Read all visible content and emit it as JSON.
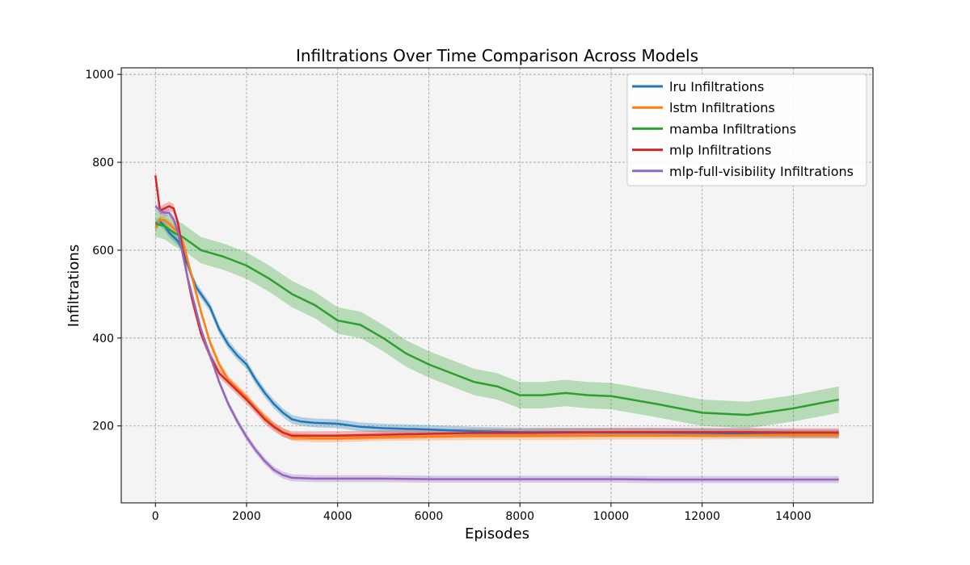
{
  "chart_data": {
    "type": "line",
    "title": "Infiltrations Over Time Comparison Across Models",
    "xlabel": "Episodes",
    "ylabel": "Infiltrations",
    "xlim": [
      -750,
      15750
    ],
    "ylim": [
      25,
      1015
    ],
    "xticks": [
      0,
      2000,
      4000,
      6000,
      8000,
      10000,
      12000,
      14000
    ],
    "yticks": [
      200,
      400,
      600,
      800,
      1000
    ],
    "grid": true,
    "legend_position": "top-right",
    "shaded_band": "variability band around each series mean",
    "series": [
      {
        "name": "lru Infiltrations",
        "color": "#1f77b4",
        "x": [
          0,
          100,
          200,
          300,
          400,
          500,
          600,
          700,
          800,
          900,
          1000,
          1200,
          1400,
          1600,
          1800,
          2000,
          2200,
          2400,
          2600,
          2800,
          3000,
          3200,
          3500,
          4000,
          4500,
          5000,
          6000,
          7000,
          8000,
          9000,
          10000,
          11000,
          12000,
          13000,
          14000,
          15000
        ],
        "y": [
          660,
          665,
          655,
          640,
          630,
          620,
          600,
          570,
          540,
          515,
          500,
          470,
          420,
          385,
          360,
          340,
          305,
          275,
          250,
          230,
          215,
          210,
          207,
          205,
          198,
          195,
          192,
          188,
          186,
          186,
          185,
          185,
          184,
          183,
          182,
          182
        ],
        "band": 10
      },
      {
        "name": "lstm Infiltrations",
        "color": "#ff7f0e",
        "x": [
          0,
          100,
          200,
          300,
          400,
          500,
          600,
          700,
          800,
          900,
          1000,
          1200,
          1400,
          1600,
          1800,
          2000,
          2200,
          2400,
          2600,
          2800,
          3000,
          3500,
          4000,
          5000,
          6000,
          7000,
          8000,
          9000,
          10000,
          11000,
          12000,
          13000,
          14000,
          15000
        ],
        "y": [
          650,
          670,
          668,
          660,
          650,
          640,
          620,
          580,
          540,
          500,
          460,
          390,
          340,
          305,
          285,
          265,
          240,
          220,
          200,
          185,
          175,
          172,
          172,
          175,
          176,
          177,
          177,
          177,
          178,
          178,
          178,
          179,
          180,
          180
        ],
        "band": 9
      },
      {
        "name": "mamba Infiltrations",
        "color": "#2ca02c",
        "x": [
          0,
          200,
          400,
          600,
          800,
          1000,
          1500,
          2000,
          2500,
          3000,
          3500,
          4000,
          4500,
          5000,
          5500,
          6000,
          6500,
          7000,
          7500,
          8000,
          8500,
          9000,
          9500,
          10000,
          11000,
          12000,
          13000,
          14000,
          15000
        ],
        "y": [
          660,
          655,
          640,
          630,
          615,
          600,
          585,
          565,
          535,
          500,
          475,
          440,
          430,
          400,
          365,
          340,
          320,
          300,
          290,
          270,
          270,
          275,
          270,
          268,
          250,
          230,
          225,
          240,
          260
        ],
        "band": 30
      },
      {
        "name": "mlp Infiltrations",
        "color": "#d62728",
        "x": [
          0,
          100,
          200,
          300,
          400,
          500,
          600,
          700,
          800,
          900,
          1000,
          1200,
          1400,
          1600,
          1800,
          2000,
          2200,
          2400,
          2600,
          2800,
          3000,
          3500,
          4000,
          5000,
          6000,
          7000,
          8000,
          9000,
          10000,
          11000,
          12000,
          13000,
          14000,
          15000
        ],
        "y": [
          770,
          690,
          695,
          700,
          695,
          660,
          600,
          540,
          490,
          450,
          410,
          360,
          320,
          300,
          280,
          260,
          238,
          215,
          198,
          185,
          178,
          178,
          178,
          180,
          182,
          184,
          184,
          185,
          186,
          186,
          186,
          186,
          185,
          185
        ],
        "band": 10
      },
      {
        "name": "mlp-full-visibility Infiltrations",
        "color": "#9467bd",
        "x": [
          0,
          100,
          200,
          300,
          400,
          500,
          600,
          700,
          800,
          900,
          1000,
          1200,
          1400,
          1600,
          1800,
          2000,
          2200,
          2400,
          2600,
          2800,
          3000,
          3500,
          4000,
          5000,
          6000,
          7000,
          8000,
          9000,
          10000,
          11000,
          12000,
          13000,
          14000,
          15000
        ],
        "y": [
          700,
          690,
          685,
          685,
          670,
          640,
          590,
          540,
          500,
          460,
          420,
          360,
          300,
          250,
          210,
          175,
          145,
          120,
          100,
          88,
          82,
          80,
          80,
          80,
          79,
          79,
          79,
          79,
          79,
          78,
          78,
          78,
          78,
          78
        ],
        "band": 8
      }
    ]
  }
}
